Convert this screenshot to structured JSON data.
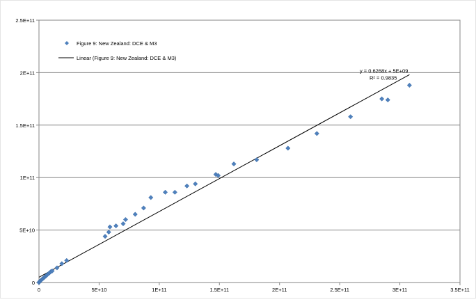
{
  "chart_data": {
    "type": "scatter",
    "title": "",
    "xlabel": "",
    "ylabel": "",
    "xlim": [
      0,
      350000000000
    ],
    "ylim": [
      0,
      250000000000
    ],
    "x_ticks": [
      0,
      50000000000,
      100000000000,
      150000000000,
      200000000000,
      250000000000,
      300000000000,
      350000000000
    ],
    "x_tick_labels": [
      "0",
      "5E+10",
      "1E+11",
      "1.5E+11",
      "2E+11",
      "2.5E+11",
      "3E+11",
      "3.5E+11"
    ],
    "y_ticks": [
      0,
      50000000000,
      100000000000,
      150000000000,
      200000000000,
      250000000000
    ],
    "y_tick_labels": [
      "0",
      "5E+10",
      "1E+11",
      "1.5E+11",
      "2E+11",
      "2.5E+11"
    ],
    "grid": "horizontal",
    "legend_position": "top-left",
    "colors": {
      "marker": "#4F81BD",
      "trendline": "#000000",
      "grid": "#868686",
      "axis": "#868686"
    },
    "series": [
      {
        "name": "Figure 9: New Zealand: DCE & M3",
        "marker": "diamond",
        "points": [
          [
            0,
            0
          ],
          [
            500000000,
            800000000
          ],
          [
            1000000000,
            1500000000
          ],
          [
            1500000000,
            2000000000
          ],
          [
            2000000000,
            2500000000
          ],
          [
            2500000000,
            3000000000
          ],
          [
            3000000000,
            3500000000
          ],
          [
            3500000000,
            4000000000
          ],
          [
            4000000000,
            4500000000
          ],
          [
            4500000000,
            5000000000
          ],
          [
            5000000000,
            5500000000
          ],
          [
            5500000000,
            6000000000
          ],
          [
            6000000000,
            6500000000
          ],
          [
            6500000000,
            7000000000
          ],
          [
            7000000000,
            7500000000
          ],
          [
            8000000000,
            8500000000
          ],
          [
            9000000000,
            9500000000
          ],
          [
            10000000000,
            10500000000
          ],
          [
            11000000000,
            11000000000
          ],
          [
            15000000000,
            14000000000
          ],
          [
            19000000000,
            18000000000
          ],
          [
            23000000000,
            21000000000
          ],
          [
            55000000000,
            44000000000
          ],
          [
            58000000000,
            48000000000
          ],
          [
            59000000000,
            53000000000
          ],
          [
            64000000000,
            54000000000
          ],
          [
            70000000000,
            56000000000
          ],
          [
            72000000000,
            60000000000
          ],
          [
            80000000000,
            65000000000
          ],
          [
            87000000000,
            71000000000
          ],
          [
            93000000000,
            81000000000
          ],
          [
            105000000000,
            86000000000
          ],
          [
            113000000000,
            86000000000
          ],
          [
            123000000000,
            92000000000
          ],
          [
            130000000000,
            94000000000
          ],
          [
            147000000000,
            103000000000
          ],
          [
            149000000000,
            102000000000
          ],
          [
            162000000000,
            113000000000
          ],
          [
            181000000000,
            117000000000
          ],
          [
            207000000000,
            128000000000
          ],
          [
            231000000000,
            142000000000
          ],
          [
            259000000000,
            158000000000
          ],
          [
            285000000000,
            175000000000
          ],
          [
            290000000000,
            174000000000
          ],
          [
            308000000000,
            188000000000
          ]
        ]
      }
    ],
    "trendline": {
      "name": "Linear (Figure 9: New Zealand:  DCE & M3)",
      "slope": 0.6268,
      "intercept": 5000000000,
      "x_range": [
        0,
        308000000000
      ],
      "equation_label": "y = 0.6268x + 5E+09",
      "r2_label": "R² = 0.9835"
    }
  }
}
